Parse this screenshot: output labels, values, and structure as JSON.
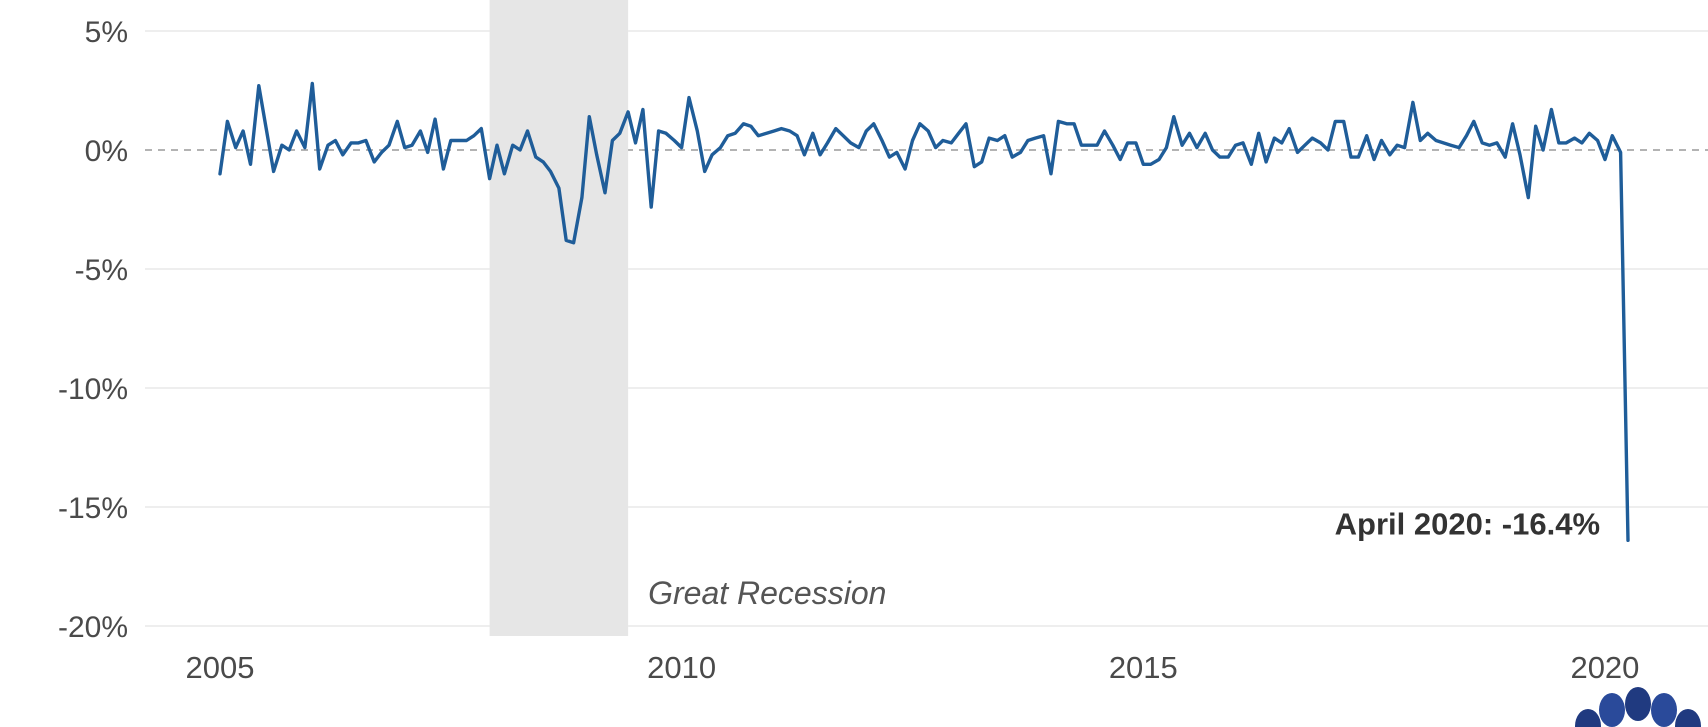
{
  "chart_data": {
    "type": "line",
    "title": "",
    "xlabel": "",
    "ylabel": "",
    "xlim": [
      2004.2,
      2021.0
    ],
    "ylim": [
      -20,
      5
    ],
    "y_ticks": [
      {
        "value": 5,
        "label": "5%"
      },
      {
        "value": 0,
        "label": "0%"
      },
      {
        "value": -5,
        "label": "-5%"
      },
      {
        "value": -10,
        "label": "-10%"
      },
      {
        "value": -15,
        "label": "-15%"
      },
      {
        "value": -20,
        "label": "-20%"
      }
    ],
    "x_ticks": [
      {
        "value": 2005,
        "label": "2005"
      },
      {
        "value": 2010,
        "label": "2010"
      },
      {
        "value": 2015,
        "label": "2015"
      },
      {
        "value": 2020,
        "label": "2020"
      }
    ],
    "grid": true,
    "zero_line": "dashed",
    "shaded_regions": [
      {
        "start": 2007.92,
        "end": 2009.42,
        "label": "Great Recession"
      }
    ],
    "annotations": [
      {
        "x": 2020.25,
        "y": -16.4,
        "text": "April 2020: -16.4%"
      }
    ],
    "series": [
      {
        "color": "#1f5d99",
        "points": [
          [
            2005.0,
            -1.0
          ],
          [
            2005.08,
            1.2
          ],
          [
            2005.17,
            0.1
          ],
          [
            2005.25,
            0.8
          ],
          [
            2005.33,
            -0.6
          ],
          [
            2005.42,
            2.7
          ],
          [
            2005.5,
            0.9
          ],
          [
            2005.58,
            -0.9
          ],
          [
            2005.67,
            0.2
          ],
          [
            2005.75,
            0.0
          ],
          [
            2005.83,
            0.8
          ],
          [
            2005.92,
            0.1
          ],
          [
            2006.0,
            2.8
          ],
          [
            2006.08,
            -0.8
          ],
          [
            2006.17,
            0.2
          ],
          [
            2006.25,
            0.4
          ],
          [
            2006.33,
            -0.2
          ],
          [
            2006.42,
            0.3
          ],
          [
            2006.5,
            0.3
          ],
          [
            2006.58,
            0.4
          ],
          [
            2006.67,
            -0.5
          ],
          [
            2006.75,
            -0.1
          ],
          [
            2006.83,
            0.2
          ],
          [
            2006.92,
            1.2
          ],
          [
            2007.0,
            0.1
          ],
          [
            2007.08,
            0.2
          ],
          [
            2007.17,
            0.8
          ],
          [
            2007.25,
            -0.1
          ],
          [
            2007.33,
            1.3
          ],
          [
            2007.42,
            -0.8
          ],
          [
            2007.5,
            0.4
          ],
          [
            2007.58,
            0.4
          ],
          [
            2007.67,
            0.4
          ],
          [
            2007.75,
            0.6
          ],
          [
            2007.83,
            0.9
          ],
          [
            2007.92,
            -1.2
          ],
          [
            2008.0,
            0.2
          ],
          [
            2008.08,
            -1.0
          ],
          [
            2008.17,
            0.2
          ],
          [
            2008.25,
            0.0
          ],
          [
            2008.33,
            0.8
          ],
          [
            2008.42,
            -0.3
          ],
          [
            2008.5,
            -0.5
          ],
          [
            2008.58,
            -0.9
          ],
          [
            2008.67,
            -1.6
          ],
          [
            2008.75,
            -3.8
          ],
          [
            2008.83,
            -3.9
          ],
          [
            2008.92,
            -2.0
          ],
          [
            2009.0,
            1.4
          ],
          [
            2009.08,
            -0.2
          ],
          [
            2009.17,
            -1.8
          ],
          [
            2009.25,
            0.4
          ],
          [
            2009.33,
            0.7
          ],
          [
            2009.42,
            1.6
          ],
          [
            2009.5,
            0.3
          ],
          [
            2009.58,
            1.7
          ],
          [
            2009.67,
            -2.4
          ],
          [
            2009.75,
            0.8
          ],
          [
            2009.83,
            0.7
          ],
          [
            2009.92,
            0.4
          ],
          [
            2010.0,
            0.1
          ],
          [
            2010.08,
            2.2
          ],
          [
            2010.17,
            0.8
          ],
          [
            2010.25,
            -0.9
          ],
          [
            2010.33,
            -0.2
          ],
          [
            2010.42,
            0.1
          ],
          [
            2010.5,
            0.6
          ],
          [
            2010.58,
            0.7
          ],
          [
            2010.67,
            1.1
          ],
          [
            2010.75,
            1.0
          ],
          [
            2010.83,
            0.6
          ],
          [
            2010.92,
            0.7
          ],
          [
            2011.0,
            0.8
          ],
          [
            2011.08,
            0.9
          ],
          [
            2011.17,
            0.8
          ],
          [
            2011.25,
            0.6
          ],
          [
            2011.33,
            -0.2
          ],
          [
            2011.42,
            0.7
          ],
          [
            2011.5,
            -0.2
          ],
          [
            2011.58,
            0.3
          ],
          [
            2011.67,
            0.9
          ],
          [
            2011.75,
            0.6
          ],
          [
            2011.83,
            0.3
          ],
          [
            2011.92,
            0.1
          ],
          [
            2012.0,
            0.8
          ],
          [
            2012.08,
            1.1
          ],
          [
            2012.17,
            0.4
          ],
          [
            2012.25,
            -0.3
          ],
          [
            2012.33,
            -0.1
          ],
          [
            2012.42,
            -0.8
          ],
          [
            2012.5,
            0.4
          ],
          [
            2012.58,
            1.1
          ],
          [
            2012.67,
            0.8
          ],
          [
            2012.75,
            0.1
          ],
          [
            2012.83,
            0.4
          ],
          [
            2012.92,
            0.3
          ],
          [
            2013.0,
            0.7
          ],
          [
            2013.08,
            1.1
          ],
          [
            2013.17,
            -0.7
          ],
          [
            2013.25,
            -0.5
          ],
          [
            2013.33,
            0.5
          ],
          [
            2013.42,
            0.4
          ],
          [
            2013.5,
            0.6
          ],
          [
            2013.58,
            -0.3
          ],
          [
            2013.67,
            -0.1
          ],
          [
            2013.75,
            0.4
          ],
          [
            2013.83,
            0.5
          ],
          [
            2013.92,
            0.6
          ],
          [
            2014.0,
            -1.0
          ],
          [
            2014.08,
            1.2
          ],
          [
            2014.17,
            1.1
          ],
          [
            2014.25,
            1.1
          ],
          [
            2014.33,
            0.2
          ],
          [
            2014.42,
            0.2
          ],
          [
            2014.5,
            0.2
          ],
          [
            2014.58,
            0.8
          ],
          [
            2014.67,
            0.2
          ],
          [
            2014.75,
            -0.4
          ],
          [
            2014.83,
            0.3
          ],
          [
            2014.92,
            0.3
          ],
          [
            2015.0,
            -0.6
          ],
          [
            2015.08,
            -0.6
          ],
          [
            2015.17,
            -0.4
          ],
          [
            2015.25,
            0.1
          ],
          [
            2015.33,
            1.4
          ],
          [
            2015.42,
            0.2
          ],
          [
            2015.5,
            0.7
          ],
          [
            2015.58,
            0.1
          ],
          [
            2015.67,
            0.7
          ],
          [
            2015.75,
            0.0
          ],
          [
            2015.83,
            -0.3
          ],
          [
            2015.92,
            -0.3
          ],
          [
            2016.0,
            0.2
          ],
          [
            2016.08,
            0.3
          ],
          [
            2016.17,
            -0.6
          ],
          [
            2016.25,
            0.7
          ],
          [
            2016.33,
            -0.5
          ],
          [
            2016.42,
            0.5
          ],
          [
            2016.5,
            0.3
          ],
          [
            2016.58,
            0.9
          ],
          [
            2016.67,
            -0.1
          ],
          [
            2016.75,
            0.2
          ],
          [
            2016.83,
            0.5
          ],
          [
            2016.92,
            0.3
          ],
          [
            2017.0,
            0.0
          ],
          [
            2017.08,
            1.2
          ],
          [
            2017.17,
            1.2
          ],
          [
            2017.25,
            -0.3
          ],
          [
            2017.33,
            -0.3
          ],
          [
            2017.42,
            0.6
          ],
          [
            2017.5,
            -0.4
          ],
          [
            2017.58,
            0.4
          ],
          [
            2017.67,
            -0.2
          ],
          [
            2017.75,
            0.2
          ],
          [
            2017.83,
            0.1
          ],
          [
            2017.92,
            2.0
          ],
          [
            2018.0,
            0.4
          ],
          [
            2018.08,
            0.7
          ],
          [
            2018.17,
            0.4
          ],
          [
            2018.25,
            0.3
          ],
          [
            2018.33,
            0.2
          ],
          [
            2018.42,
            0.1
          ],
          [
            2018.5,
            0.6
          ],
          [
            2018.58,
            1.2
          ],
          [
            2018.67,
            0.3
          ],
          [
            2018.75,
            0.2
          ],
          [
            2018.83,
            0.3
          ],
          [
            2018.92,
            -0.3
          ],
          [
            2019.0,
            1.1
          ],
          [
            2019.08,
            -0.2
          ],
          [
            2019.17,
            -2.0
          ],
          [
            2019.25,
            1.0
          ],
          [
            2019.33,
            0.0
          ],
          [
            2019.42,
            1.7
          ],
          [
            2019.5,
            0.3
          ],
          [
            2019.58,
            0.3
          ],
          [
            2019.67,
            0.5
          ],
          [
            2019.75,
            0.3
          ],
          [
            2019.83,
            0.7
          ],
          [
            2019.92,
            0.4
          ],
          [
            2020.0,
            -0.4
          ],
          [
            2020.08,
            0.6
          ],
          [
            2020.17,
            -0.1
          ],
          [
            2020.25,
            -16.4
          ]
        ]
      }
    ]
  },
  "logo": {
    "name": "peacock-logo-icon",
    "colors": [
      "#203a80",
      "#2a4a9a"
    ]
  }
}
